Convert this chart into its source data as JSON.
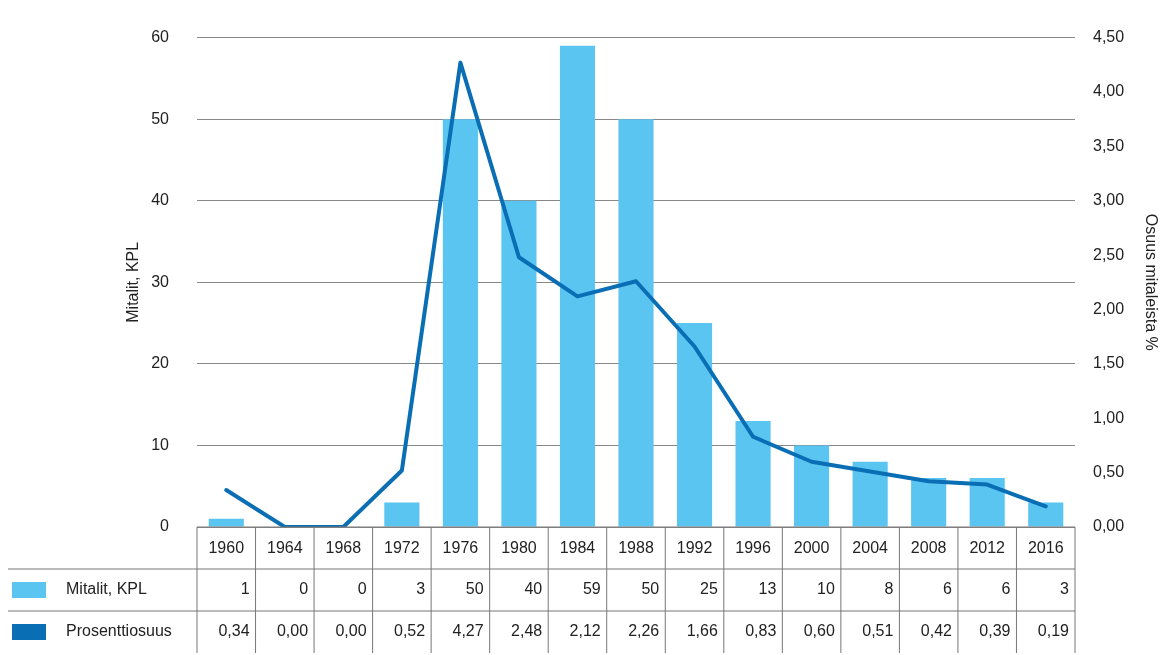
{
  "chart_data": {
    "type": "bar",
    "ylabel": "Mitalit, KPL",
    "y2label": "Osuus mitaleista %",
    "categories": [
      "1960",
      "1964",
      "1968",
      "1972",
      "1976",
      "1980",
      "1984",
      "1988",
      "1992",
      "1996",
      "2000",
      "2004",
      "2008",
      "2012",
      "2016"
    ],
    "series": [
      {
        "name": "Mitalit, KPL",
        "color": "#5bc5f2",
        "values": [
          1,
          0,
          0,
          3,
          50,
          40,
          59,
          50,
          25,
          13,
          10,
          8,
          6,
          6,
          3
        ],
        "value_labels": [
          "1",
          "0",
          "0",
          "3",
          "50",
          "40",
          "59",
          "50",
          "25",
          "13",
          "10",
          "8",
          "6",
          "6",
          "3"
        ]
      },
      {
        "name": "Prosenttiosuus",
        "type": "line",
        "axis": "y2",
        "color": "#0a6eb4",
        "values": [
          0.34,
          0,
          0,
          0.52,
          4.27,
          2.48,
          2.12,
          2.26,
          1.66,
          0.83,
          0.6,
          0.51,
          0.42,
          0.39,
          0.19
        ],
        "value_labels": [
          "0,34",
          "0,00",
          "0,00",
          "0,52",
          "4,27",
          "2,48",
          "2,12",
          "2,26",
          "1,66",
          "0,83",
          "0,60",
          "0,51",
          "0,42",
          "0,39",
          "0,19"
        ]
      }
    ],
    "ylim": [
      0,
      60
    ],
    "yticks": [
      0,
      10,
      20,
      30,
      40,
      50,
      60
    ],
    "y2lim": [
      0,
      4.5
    ],
    "y2ticks": [
      {
        "value": 0,
        "label": "0,00"
      },
      {
        "value": 0.5,
        "label": "0,50"
      },
      {
        "value": 1,
        "label": "1,00"
      },
      {
        "value": 1.5,
        "label": "1,50"
      },
      {
        "value": 2,
        "label": "2,00"
      },
      {
        "value": 2.5,
        "label": "2,50"
      },
      {
        "value": 3,
        "label": "3,00"
      },
      {
        "value": 3.5,
        "label": "3,50"
      },
      {
        "value": 4,
        "label": "4,00"
      },
      {
        "value": 4.5,
        "label": "4,50"
      }
    ],
    "grid": "y",
    "legend": "bottom",
    "marker": "none",
    "line_style": "solid"
  }
}
